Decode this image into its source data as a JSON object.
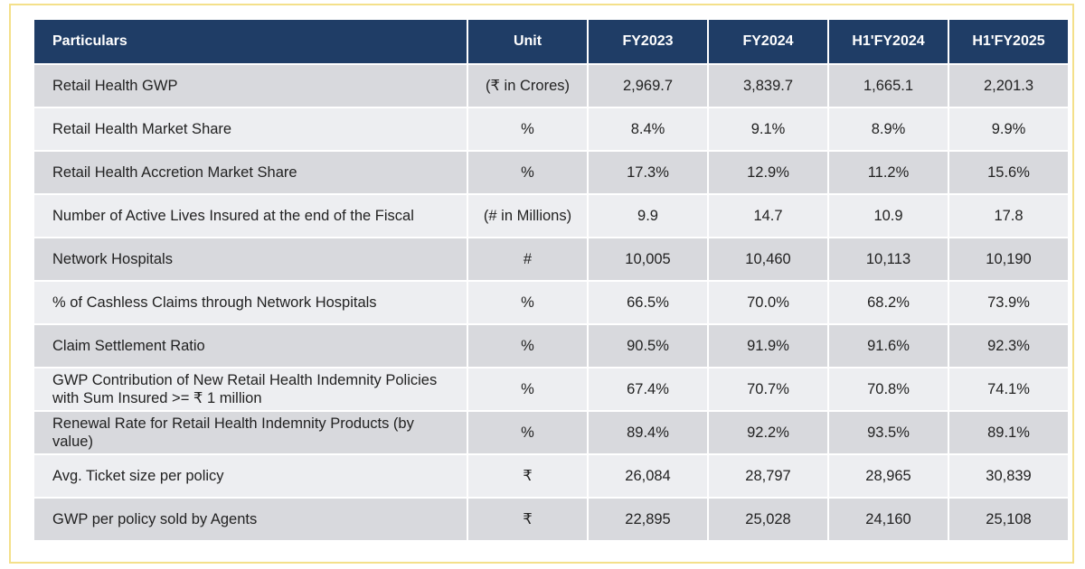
{
  "table": {
    "headers": [
      "Particulars",
      "Unit",
      "FY2023",
      "FY2024",
      "H1'FY2024",
      "H1'FY2025"
    ],
    "rows": [
      [
        "Retail Health GWP",
        "(₹ in Crores)",
        "2,969.7",
        "3,839.7",
        "1,665.1",
        "2,201.3"
      ],
      [
        "Retail Health Market Share",
        "%",
        "8.4%",
        "9.1%",
        "8.9%",
        "9.9%"
      ],
      [
        "Retail Health Accretion Market Share",
        "%",
        "17.3%",
        "12.9%",
        "11.2%",
        "15.6%"
      ],
      [
        "Number of Active Lives Insured at the end of the Fiscal",
        "(# in Millions)",
        "9.9",
        "14.7",
        "10.9",
        "17.8"
      ],
      [
        "Network Hospitals",
        "#",
        "10,005",
        "10,460",
        "10,113",
        "10,190"
      ],
      [
        "% of Cashless Claims through Network Hospitals",
        "%",
        "66.5%",
        "70.0%",
        "68.2%",
        "73.9%"
      ],
      [
        "Claim Settlement Ratio",
        "%",
        "90.5%",
        "91.9%",
        "91.6%",
        "92.3%"
      ],
      [
        "GWP Contribution of New Retail Health Indemnity Policies with Sum Insured >= ₹ 1 million",
        "%",
        "67.4%",
        "70.7%",
        "70.8%",
        "74.1%"
      ],
      [
        "Renewal Rate for Retail Health Indemnity Products (by value)",
        "%",
        "89.4%",
        "92.2%",
        "93.5%",
        "89.1%"
      ],
      [
        "Avg. Ticket size per policy",
        "₹",
        "26,084",
        "28,797",
        "28,965",
        "30,839"
      ],
      [
        "GWP per policy sold by Agents",
        "₹",
        "22,895",
        "25,028",
        "24,160",
        "25,108"
      ]
    ]
  },
  "colors": {
    "header_bg": "#1f3d66",
    "row_dark": "#d8d9dd",
    "row_light": "#edeef1",
    "frame_border": "#f4e08a"
  }
}
